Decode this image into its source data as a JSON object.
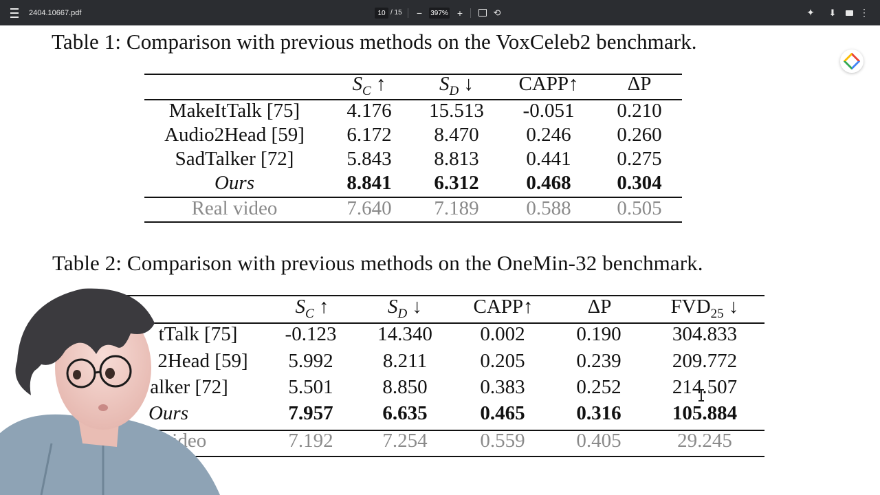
{
  "toolbar": {
    "filename": "2404.10667.pdf",
    "current_page": "10",
    "total_pages": "/ 15",
    "zoom": "397%",
    "zoom_out": "−",
    "zoom_in": "+",
    "rotate": "⟲",
    "sparkle": "✦",
    "download": "⬇",
    "more": "⋮"
  },
  "table1": {
    "caption": "Table 1: Comparison with previous methods on the VoxCeleb2 benchmark.",
    "headers": [
      "S_C ↑",
      "S_D ↓",
      "CAPP↑",
      "ΔP"
    ],
    "rows": [
      {
        "method": "MakeItTalk [75]",
        "values": [
          "4.176",
          "15.513",
          "-0.051",
          "0.210"
        ]
      },
      {
        "method": "Audio2Head [59]",
        "values": [
          "6.172",
          "8.470",
          "0.246",
          "0.260"
        ]
      },
      {
        "method": "SadTalker [72]",
        "values": [
          "5.843",
          "8.813",
          "0.441",
          "0.275"
        ]
      },
      {
        "method": "Ours",
        "values": [
          "8.841",
          "6.312",
          "0.468",
          "0.304"
        ]
      },
      {
        "method": "Real video",
        "values": [
          "7.640",
          "7.189",
          "0.588",
          "0.505"
        ]
      }
    ]
  },
  "table2": {
    "caption": "Table 2: Comparison with previous methods on the OneMin-32 benchmark.",
    "headers": [
      "S_C ↑",
      "S_D ↓",
      "CAPP↑",
      "ΔP",
      "FVD25 ↓"
    ],
    "rows": [
      {
        "method": "tTalk [75]",
        "values": [
          "-0.123",
          "14.340",
          "0.002",
          "0.190",
          "304.833"
        ]
      },
      {
        "method": "2Head [59]",
        "values": [
          "5.992",
          "8.211",
          "0.205",
          "0.239",
          "209.772"
        ]
      },
      {
        "method": "alker [72]",
        "values": [
          "5.501",
          "8.850",
          "0.383",
          "0.252",
          "214.507"
        ]
      },
      {
        "method": "Ours",
        "values": [
          "7.957",
          "6.635",
          "0.465",
          "0.316",
          "105.884"
        ]
      },
      {
        "method": "video",
        "values": [
          "7.192",
          "7.254",
          "0.559",
          "0.405",
          "29.245"
        ]
      }
    ]
  }
}
